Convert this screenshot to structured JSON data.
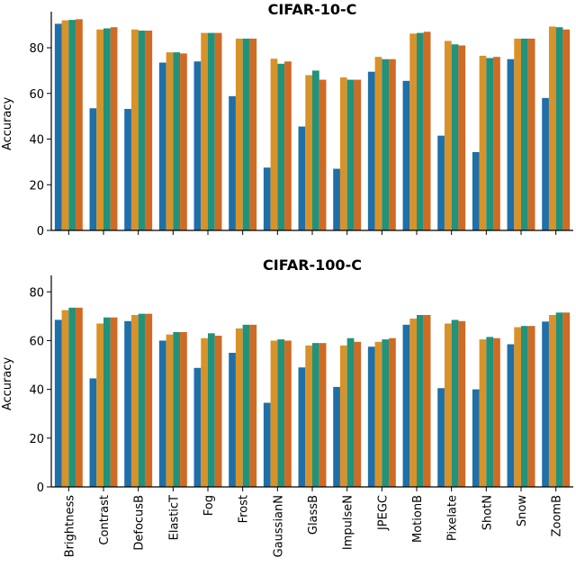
{
  "chart_data": [
    {
      "type": "bar",
      "title": "CIFAR-10-C",
      "xlabel": "",
      "ylabel": "Accuracy",
      "ylim": [
        0,
        95
      ],
      "yticks": [
        0,
        20,
        40,
        60,
        80
      ],
      "show_category_labels": false,
      "categories": [
        "Brightness",
        "Contrast",
        "DefocusB",
        "ElasticT",
        "Fog",
        "Frost",
        "GaussianN",
        "GlassB",
        "ImpulseN",
        "JPEGC",
        "MotionB",
        "Pixelate",
        "ShotN",
        "Snow",
        "ZoomB"
      ],
      "series": [
        {
          "color": "#1f6fa8",
          "values": [
            90.5,
            53.5,
            53.2,
            73.5,
            74.0,
            58.8,
            27.5,
            45.5,
            27.0,
            69.5,
            65.5,
            41.5,
            34.3,
            75.0,
            58.0
          ]
        },
        {
          "color": "#d8922a",
          "values": [
            92.0,
            88.0,
            88.0,
            78.0,
            86.5,
            84.0,
            75.2,
            68.0,
            67.0,
            76.0,
            86.2,
            83.0,
            76.5,
            84.0,
            89.3
          ]
        },
        {
          "color": "#22927a",
          "values": [
            92.2,
            88.5,
            87.5,
            78.0,
            86.5,
            84.0,
            73.0,
            70.0,
            66.0,
            75.0,
            86.5,
            81.5,
            75.5,
            84.0,
            89.0
          ]
        },
        {
          "color": "#cf6b25",
          "values": [
            92.5,
            89.0,
            87.5,
            77.5,
            86.5,
            84.0,
            74.0,
            66.0,
            66.0,
            75.0,
            87.0,
            81.0,
            76.0,
            84.0,
            88.0
          ]
        }
      ]
    },
    {
      "type": "bar",
      "title": "CIFAR-100-C",
      "xlabel": "",
      "ylabel": "Accuracy",
      "ylim": [
        0,
        86
      ],
      "yticks": [
        0,
        20,
        40,
        60,
        80
      ],
      "show_category_labels": true,
      "categories": [
        "Brightness",
        "Contrast",
        "DefocusB",
        "ElasticT",
        "Fog",
        "Frost",
        "GaussianN",
        "GlassB",
        "ImpulseN",
        "JPEGC",
        "MotionB",
        "Pixelate",
        "ShotN",
        "Snow",
        "ZoomB"
      ],
      "series": [
        {
          "color": "#1f6fa8",
          "values": [
            68.5,
            44.5,
            68.0,
            60.0,
            48.8,
            55.0,
            34.5,
            49.0,
            41.0,
            57.5,
            66.5,
            40.5,
            40.0,
            58.5,
            67.8
          ]
        },
        {
          "color": "#d8922a",
          "values": [
            72.5,
            67.0,
            70.5,
            62.5,
            61.0,
            65.0,
            60.0,
            58.0,
            58.0,
            59.5,
            69.0,
            67.0,
            60.5,
            65.5,
            70.5
          ]
        },
        {
          "color": "#22927a",
          "values": [
            73.5,
            69.5,
            71.0,
            63.5,
            63.0,
            66.5,
            60.5,
            59.0,
            61.0,
            60.5,
            70.5,
            68.5,
            61.5,
            66.0,
            71.5
          ]
        },
        {
          "color": "#cf6b25",
          "values": [
            73.5,
            69.5,
            71.0,
            63.5,
            62.0,
            66.5,
            60.0,
            59.0,
            59.5,
            61.0,
            70.5,
            68.0,
            61.0,
            66.0,
            71.5
          ]
        }
      ]
    }
  ]
}
